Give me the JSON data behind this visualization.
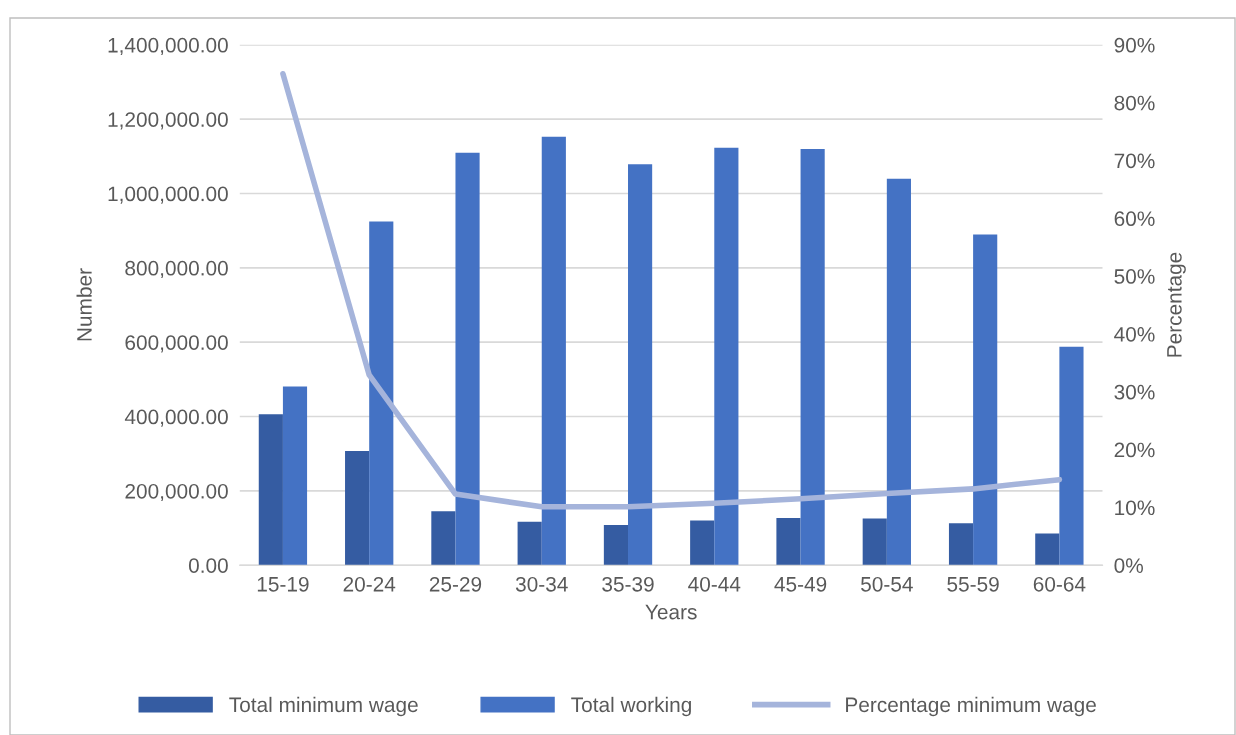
{
  "chart_data": {
    "type": "bar",
    "xlabel": "Years",
    "ylabel": "Number",
    "y2label": "Percentage",
    "categories": [
      "15-19",
      "20-24",
      "25-29",
      "30-34",
      "35-39",
      "40-44",
      "45-49",
      "50-54",
      "55-59",
      "60-64"
    ],
    "series": [
      {
        "name": "Total minimum wage",
        "color": "#355ca2",
        "values": [
          406000,
          307000,
          145000,
          117000,
          108000,
          120000,
          127000,
          126000,
          113000,
          85000
        ]
      },
      {
        "name": "Total working",
        "color": "#4472c4",
        "values": [
          481000,
          925000,
          1110000,
          1153000,
          1079000,
          1123000,
          1120000,
          1040000,
          890000,
          588000
        ]
      },
      {
        "name": "Percentage minimum wage",
        "type": "line",
        "axis": "y2",
        "color": "#a5b4db",
        "values": [
          85,
          32.9,
          12.3,
          10.1,
          10.1,
          10.7,
          11.5,
          12.4,
          13.2,
          14.8
        ]
      }
    ],
    "ylim": [
      0,
      1400000
    ],
    "yticks": [
      {
        "value": 0,
        "label": "0.00"
      },
      {
        "value": 200000,
        "label": "200,000.00"
      },
      {
        "value": 400000,
        "label": "400,000.00"
      },
      {
        "value": 600000,
        "label": "600,000.00"
      },
      {
        "value": 800000,
        "label": "800,000.00"
      },
      {
        "value": 1000000,
        "label": "1,000,000.00"
      },
      {
        "value": 1200000,
        "label": "1,200,000.00"
      },
      {
        "value": 1400000,
        "label": "1,400,000.00"
      }
    ],
    "y2lim": [
      0,
      90
    ],
    "y2ticks": [
      {
        "value": 0,
        "label": "0%"
      },
      {
        "value": 10,
        "label": "10%"
      },
      {
        "value": 20,
        "label": "20%"
      },
      {
        "value": 30,
        "label": "30%"
      },
      {
        "value": 40,
        "label": "40%"
      },
      {
        "value": 50,
        "label": "50%"
      },
      {
        "value": 60,
        "label": "60%"
      },
      {
        "value": 70,
        "label": "70%"
      },
      {
        "value": 80,
        "label": "80%"
      },
      {
        "value": 90,
        "label": "90%"
      }
    ],
    "grid": "y",
    "legend": "bottom"
  }
}
